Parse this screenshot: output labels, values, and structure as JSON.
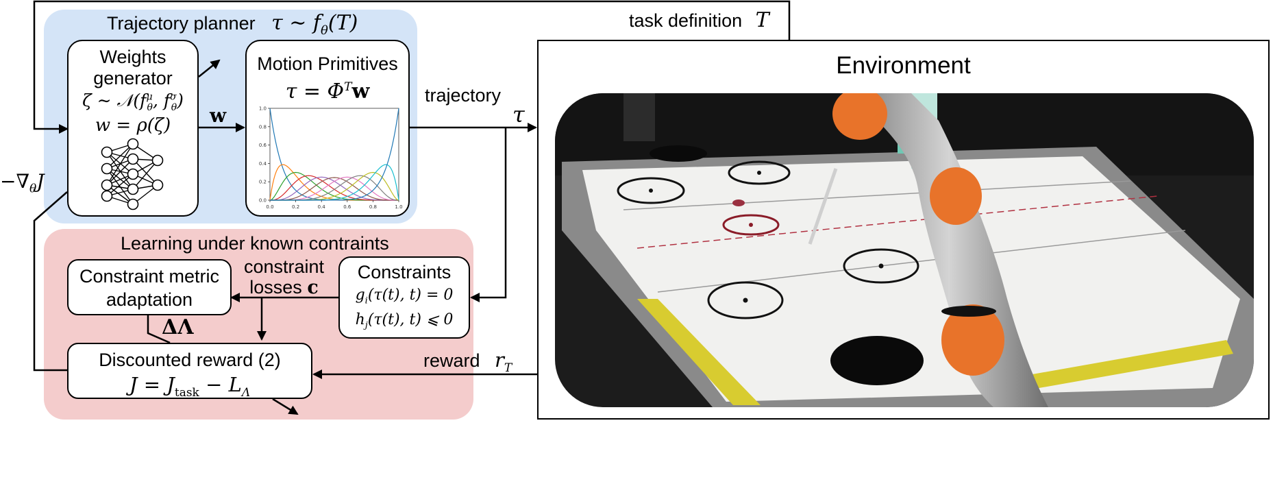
{
  "task_definition": {
    "label": "task definition",
    "symbol": "T"
  },
  "planner": {
    "title": "Trajectory planner",
    "formula": "τ ∼ f",
    "formula_sub": "θ",
    "formula_arg": "(T)",
    "color": "#d4e4f7"
  },
  "weights_generator": {
    "line1": "Weights",
    "line2": "generator",
    "dist": "ζ ∼ 𝒩(f",
    "dist_sub1": "θ",
    "dist_sup1": "μ",
    "dist_mid": ", f",
    "dist_sub2": "θ",
    "dist_sup2": "σ",
    "dist_end": ")",
    "wdef": "w = ρ(ζ)"
  },
  "w_label": "w",
  "motion_primitives": {
    "title": "Motion Primitives",
    "formula": "τ = Φ",
    "formula_sup": "T",
    "formula_end": "w"
  },
  "trajectory": {
    "label": "trajectory",
    "symbol": "τ"
  },
  "environment": {
    "title": "Environment"
  },
  "gradient": {
    "label": "−∇",
    "sub": "θ",
    "end": "J"
  },
  "learning": {
    "title": "Learning under known contraints",
    "color": "#f4cccc"
  },
  "constraint_metric": {
    "line1": "Constraint metric",
    "line2": "adaptation"
  },
  "constraint_losses": {
    "line1": "constraint",
    "line2": "losses",
    "symbol": "c"
  },
  "constraints": {
    "title": "Constraints",
    "eq1": "g",
    "eq1_sub": "i",
    "eq1_rest": "(τ(t), t) = 0",
    "eq2": "h",
    "eq2_sub": "j",
    "eq2_rest": "(τ(t), t) ⩽ 0"
  },
  "delta_lambda": "ΔΛ",
  "discounted_reward": {
    "title": "Discounted reward (2)",
    "J": "J = J",
    "J_sub": "task",
    "J_mid": " − L",
    "J_sub2": "Λ"
  },
  "reward": {
    "label": "reward",
    "symbol": "r",
    "sub": "T"
  },
  "chart_data": {
    "type": "line",
    "title": "",
    "xlabel": "",
    "ylabel": "",
    "xlim": [
      0,
      1
    ],
    "ylim": [
      0,
      1
    ],
    "xticks": [
      "0.0",
      "0.2",
      "0.4",
      "0.6",
      "0.8",
      "1.0"
    ],
    "yticks": [
      "0.0",
      "0.2",
      "0.4",
      "0.6",
      "0.8",
      "1.0"
    ],
    "degree": 10,
    "series": [
      {
        "index": 0,
        "color": "#1f77b4"
      },
      {
        "index": 1,
        "color": "#ff7f0e"
      },
      {
        "index": 2,
        "color": "#2ca02c"
      },
      {
        "index": 3,
        "color": "#d62728"
      },
      {
        "index": 4,
        "color": "#9467bd"
      },
      {
        "index": 5,
        "color": "#8c564b"
      },
      {
        "index": 6,
        "color": "#e377c2"
      },
      {
        "index": 7,
        "color": "#7f7f7f"
      },
      {
        "index": 8,
        "color": "#bcbd22"
      },
      {
        "index": 9,
        "color": "#17becf"
      },
      {
        "index": 10,
        "color": "#1f77b4"
      }
    ]
  }
}
